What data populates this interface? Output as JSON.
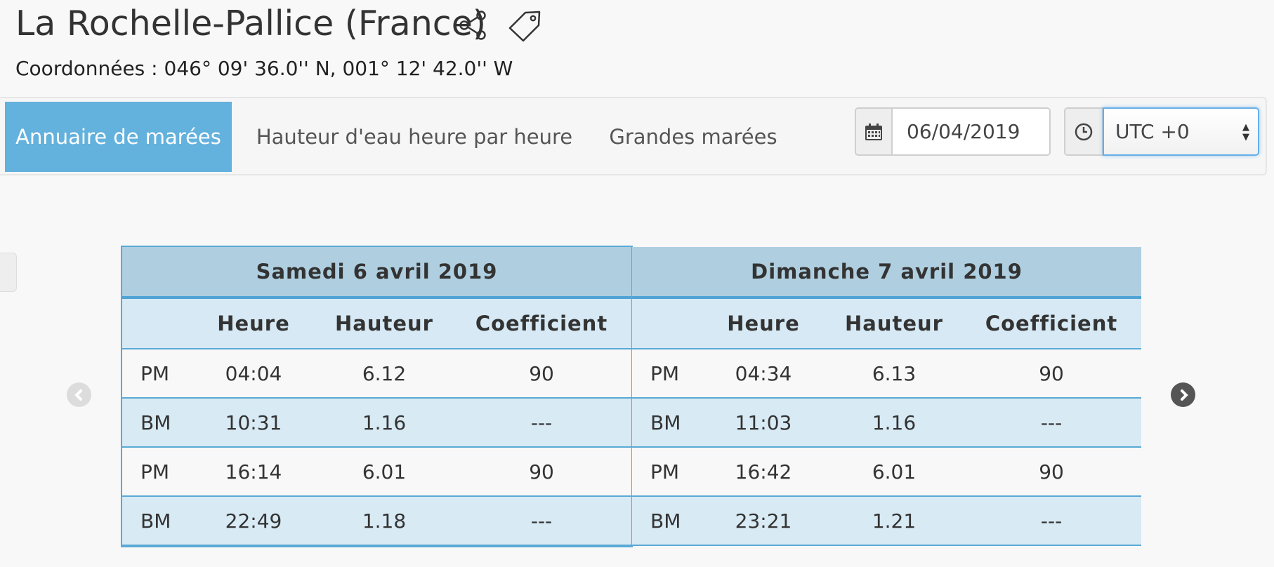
{
  "header": {
    "title": "La Rochelle-Pallice (France)",
    "coordinates": "Coordonnées : 046° 09' 36.0'' N, 001° 12' 42.0'' W",
    "icons": [
      "share-icon",
      "tag-icon"
    ]
  },
  "nav": {
    "tabs": [
      {
        "label": "Annuaire de marées",
        "active": true
      },
      {
        "label": "Hauteur d'eau heure par heure",
        "active": false
      },
      {
        "label": "Grandes marées",
        "active": false
      }
    ],
    "date_value": "06/04/2019",
    "timezone_value": "UTC +0",
    "icons": [
      "calendar-icon",
      "clock-icon"
    ]
  },
  "colors": {
    "accent": "#63b1dd",
    "table_border": "#5aa9d6",
    "table_header": "#afcfe0",
    "row_alt": "#d8eaf4"
  },
  "tide_tables": [
    {
      "day": "Samedi 6 avril 2019",
      "columns": [
        "",
        "Heure",
        "Hauteur",
        "Coefficient"
      ],
      "rows": [
        {
          "type": "PM",
          "heure": "04:04",
          "hauteur": "6.12",
          "coef": "90"
        },
        {
          "type": "BM",
          "heure": "10:31",
          "hauteur": "1.16",
          "coef": "---"
        },
        {
          "type": "PM",
          "heure": "16:14",
          "hauteur": "6.01",
          "coef": "90"
        },
        {
          "type": "BM",
          "heure": "22:49",
          "hauteur": "1.18",
          "coef": "---"
        }
      ]
    },
    {
      "day": "Dimanche 7 avril 2019",
      "columns": [
        "",
        "Heure",
        "Hauteur",
        "Coefficient"
      ],
      "rows": [
        {
          "type": "PM",
          "heure": "04:34",
          "hauteur": "6.13",
          "coef": "90"
        },
        {
          "type": "BM",
          "heure": "11:03",
          "hauteur": "1.16",
          "coef": "---"
        },
        {
          "type": "PM",
          "heure": "16:42",
          "hauteur": "6.01",
          "coef": "90"
        },
        {
          "type": "BM",
          "heure": "23:21",
          "hauteur": "1.21",
          "coef": "---"
        }
      ]
    }
  ]
}
